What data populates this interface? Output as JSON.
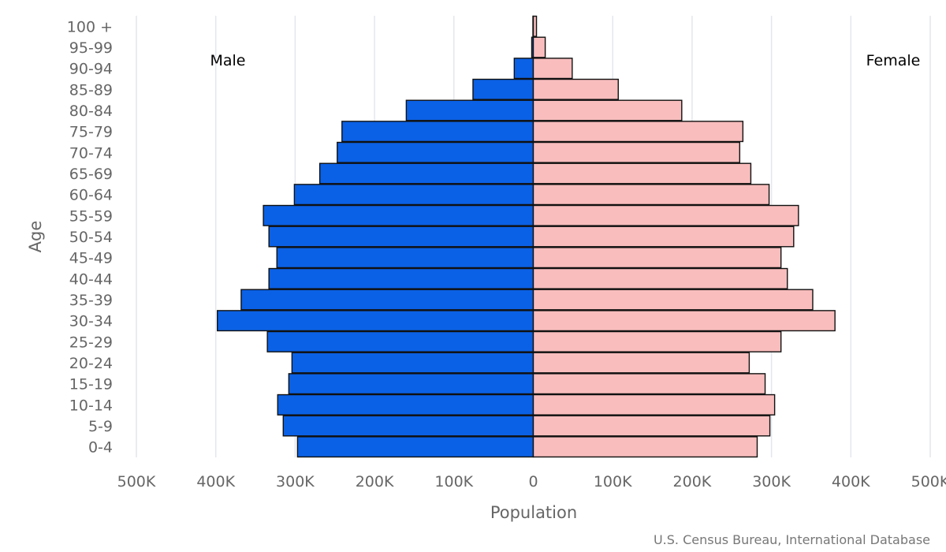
{
  "chart_data": {
    "type": "bar",
    "orientation": "horizontal",
    "title": "",
    "xlabel": "Population",
    "ylabel": "Age",
    "xlim": [
      -500000,
      500000
    ],
    "xticks": [
      -500000,
      -400000,
      -300000,
      -200000,
      -100000,
      0,
      100000,
      200000,
      300000,
      400000,
      500000
    ],
    "xtick_labels": [
      "500K",
      "400K",
      "300K",
      "200K",
      "100K",
      "0",
      "100K",
      "200K",
      "300K",
      "400K",
      "500K"
    ],
    "grid": true,
    "categories": [
      "100 +",
      "95-99",
      "90-94",
      "85-89",
      "80-84",
      "75-79",
      "70-74",
      "65-69",
      "60-64",
      "55-59",
      "50-54",
      "45-49",
      "40-44",
      "35-39",
      "30-34",
      "25-29",
      "20-24",
      "15-19",
      "10-14",
      "5-9",
      "0-4"
    ],
    "series": [
      {
        "name": "Male",
        "color": "#0b61e5",
        "values": [
          500,
          2000,
          24000,
          76000,
          160000,
          241000,
          247000,
          269000,
          301000,
          340000,
          333000,
          323000,
          333000,
          368000,
          398000,
          335000,
          304000,
          308000,
          322000,
          315000,
          297000
        ]
      },
      {
        "name": "Female",
        "color": "#f9bdbd",
        "values": [
          4000,
          15000,
          49000,
          107000,
          187000,
          264000,
          260000,
          274000,
          297000,
          334000,
          328000,
          312000,
          320000,
          352000,
          380000,
          312000,
          272000,
          292000,
          304000,
          298000,
          282000
        ]
      }
    ],
    "legend": {
      "male_label": "Male",
      "female_label": "Female",
      "placement": "top"
    },
    "credit": "U.S. Census Bureau, International Database"
  }
}
